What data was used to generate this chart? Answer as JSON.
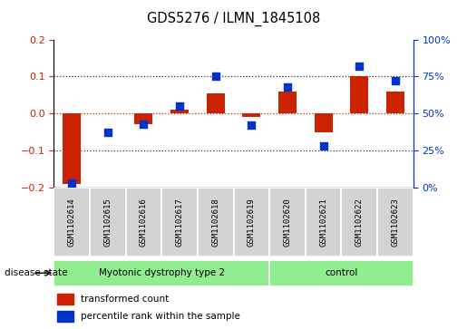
{
  "title": "GDS5276 / ILMN_1845108",
  "samples": [
    "GSM1102614",
    "GSM1102615",
    "GSM1102616",
    "GSM1102617",
    "GSM1102618",
    "GSM1102619",
    "GSM1102620",
    "GSM1102621",
    "GSM1102622",
    "GSM1102623"
  ],
  "red_values": [
    -0.19,
    0.0,
    -0.03,
    0.01,
    0.055,
    -0.01,
    0.06,
    -0.05,
    0.1,
    0.06
  ],
  "blue_values": [
    3,
    37,
    43,
    55,
    75,
    42,
    68,
    28,
    82,
    72
  ],
  "left_ylim": [
    -0.2,
    0.2
  ],
  "right_ylim": [
    0,
    100
  ],
  "left_yticks": [
    -0.2,
    -0.1,
    0.0,
    0.1,
    0.2
  ],
  "right_yticks": [
    0,
    25,
    50,
    75,
    100
  ],
  "right_yticklabels": [
    "0%",
    "25%",
    "50%",
    "75%",
    "100%"
  ],
  "group1_label": "Myotonic dystrophy type 2",
  "group2_label": "control",
  "group1_indices": [
    0,
    1,
    2,
    3,
    4,
    5
  ],
  "group2_indices": [
    6,
    7,
    8,
    9
  ],
  "disease_state_label": "disease state",
  "legend_red": "transformed count",
  "legend_blue": "percentile rank within the sample",
  "red_color": "#cc2200",
  "blue_color": "#0033cc",
  "group_bg_color": "#90ee90",
  "sample_bg_color": "#d3d3d3",
  "dotted_line_color": "#333333",
  "red_dashed_color": "#cc2200",
  "bar_width": 0.5,
  "square_size": 28
}
